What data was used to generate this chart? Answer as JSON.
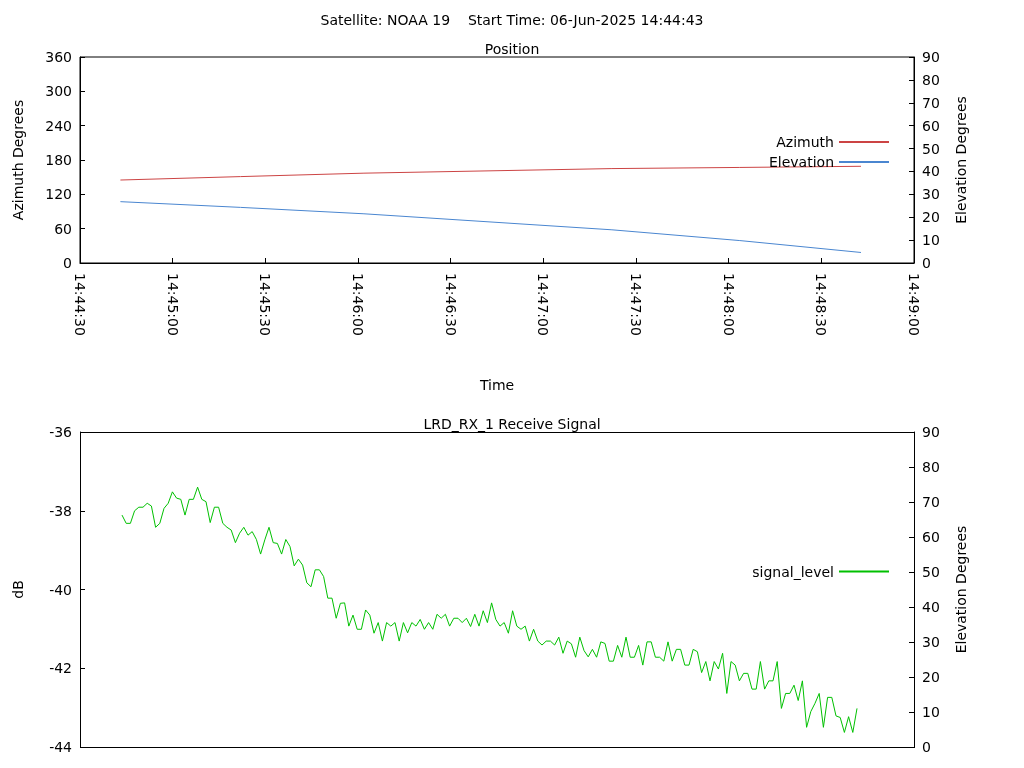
{
  "chart_data": [
    {
      "type": "line",
      "title": "Satellite: NOAA 19    Start Time: 06-Jun-2025 14:44:43",
      "subtitle": "Position",
      "xlabel": "Time",
      "ylabel": "Azimuth Degrees",
      "y2label": "Elevation Degrees",
      "xlim": [
        14.741667,
        14.816667
      ],
      "xticks": [
        {
          "value": 14.741667,
          "label": "14:44:30"
        },
        {
          "value": 14.75,
          "label": "14:45:00"
        },
        {
          "value": 14.758333,
          "label": "14:45:30"
        },
        {
          "value": 14.766667,
          "label": "14:46:00"
        },
        {
          "value": 14.775,
          "label": "14:46:30"
        },
        {
          "value": 14.783333,
          "label": "14:47:00"
        },
        {
          "value": 14.791667,
          "label": "14:47:30"
        },
        {
          "value": 14.8,
          "label": "14:48:00"
        },
        {
          "value": 14.808333,
          "label": "14:48:30"
        },
        {
          "value": 14.816667,
          "label": "14:49:00"
        }
      ],
      "ylim": [
        0,
        360
      ],
      "yticks": [
        0,
        60,
        120,
        180,
        240,
        300,
        360
      ],
      "y2lim": [
        0,
        90
      ],
      "y2ticks": [
        0,
        10,
        20,
        30,
        40,
        50,
        60,
        70,
        80,
        90
      ],
      "legend": "right",
      "series": [
        {
          "name": "Azimuth",
          "color": "#cc4444",
          "x": [
            14.7453,
            14.7561,
            14.7672,
            14.7895,
            14.801,
            14.8119
          ],
          "values": [
            145,
            151,
            157,
            165,
            167,
            169
          ]
        },
        {
          "name": "Elevation",
          "color": "#4a86d0",
          "axis": "y2",
          "x": [
            14.7453,
            14.7561,
            14.7672,
            14.7895,
            14.801,
            14.8119
          ],
          "values": [
            26.8,
            24.3,
            21.5,
            14.5,
            9.8,
            4.6
          ]
        }
      ]
    },
    {
      "type": "line",
      "title": "LRD_RX_1 Receive Signal",
      "ylabel": "dB",
      "y2label": "Elevation Degrees",
      "categories": [
        null,
        null,
        null,
        null,
        null,
        null,
        null,
        null,
        null,
        null,
        null,
        null,
        null,
        null,
        null,
        null,
        null,
        null,
        null,
        null,
        null,
        null,
        null,
        null,
        null,
        null,
        null,
        null,
        null,
        null,
        null,
        null,
        null,
        null,
        null,
        null,
        null,
        null,
        null,
        null,
        null,
        null,
        null,
        null,
        null,
        null,
        null,
        null,
        null,
        null,
        null,
        null,
        null,
        null,
        null,
        null,
        null,
        null,
        null,
        null,
        null,
        null,
        null,
        null,
        null,
        null,
        null,
        null,
        null,
        null,
        null,
        null,
        null,
        null,
        null,
        null,
        null,
        null,
        null,
        null,
        null,
        null,
        null,
        null,
        null,
        null,
        null,
        null,
        null,
        null,
        null,
        null,
        null,
        null,
        null,
        null,
        null,
        null,
        null,
        null,
        null,
        null,
        null,
        null,
        null,
        null,
        null,
        null,
        null,
        null,
        null,
        null,
        null,
        null,
        null,
        null,
        null,
        null,
        null,
        null,
        null,
        null,
        null,
        null,
        null,
        null,
        null,
        null,
        null,
        null,
        null,
        null,
        null,
        null,
        null,
        null,
        null,
        null,
        null,
        null,
        null,
        null,
        null,
        null,
        null,
        null,
        null,
        null,
        null,
        null,
        null,
        null,
        null,
        null,
        null,
        null,
        null,
        null,
        null,
        null,
        null,
        null,
        null,
        null,
        null,
        null,
        null,
        null,
        null,
        null,
        null,
        null,
        null,
        null,
        null,
        null
      ],
      "ylim": [
        -44,
        -36
      ],
      "yticks": [
        -44,
        -42,
        -40,
        -38,
        -36
      ],
      "y2lim": [
        0,
        90
      ],
      "y2ticks": [
        0,
        10,
        20,
        30,
        40,
        50,
        60,
        70,
        80,
        90
      ],
      "legend": "right",
      "series": [
        {
          "name": "signal_level",
          "color": "#00c000",
          "values": [
            -38.11,
            -38.32,
            -38.32,
            -38.0,
            -37.91,
            -37.91,
            -37.81,
            -37.88,
            -38.42,
            -38.32,
            -37.94,
            -37.81,
            -37.52,
            -37.68,
            -37.71,
            -38.11,
            -37.71,
            -37.71,
            -37.4,
            -37.71,
            -37.77,
            -38.3,
            -37.91,
            -37.91,
            -38.32,
            -38.42,
            -38.49,
            -38.81,
            -38.57,
            -38.42,
            -38.62,
            -38.53,
            -38.73,
            -39.1,
            -38.74,
            -38.42,
            -38.81,
            -38.83,
            -39.1,
            -38.73,
            -38.91,
            -39.4,
            -39.23,
            -39.38,
            -39.83,
            -39.93,
            -39.5,
            -39.5,
            -39.67,
            -40.22,
            -40.22,
            -40.73,
            -40.35,
            -40.34,
            -40.93,
            -40.65,
            -41.01,
            -41.01,
            -40.52,
            -40.65,
            -41.11,
            -40.84,
            -41.31,
            -40.84,
            -40.93,
            -40.84,
            -41.31,
            -40.84,
            -41.1,
            -40.84,
            -40.93,
            -40.76,
            -41.01,
            -40.84,
            -41.01,
            -40.63,
            -40.73,
            -40.63,
            -40.93,
            -40.73,
            -40.73,
            -40.84,
            -40.73,
            -40.94,
            -40.63,
            -40.93,
            -40.54,
            -40.84,
            -40.34,
            -40.76,
            -40.93,
            -40.84,
            -41.11,
            -40.54,
            -40.93,
            -41.01,
            -40.93,
            -41.31,
            -41.01,
            -41.31,
            -41.41,
            -41.31,
            -41.31,
            -41.41,
            -41.21,
            -41.62,
            -41.31,
            -41.38,
            -41.72,
            -41.21,
            -41.55,
            -41.71,
            -41.52,
            -41.72,
            -41.33,
            -41.37,
            -41.82,
            -41.82,
            -41.42,
            -41.72,
            -41.21,
            -41.72,
            -41.72,
            -41.42,
            -41.92,
            -41.33,
            -41.33,
            -41.72,
            -41.72,
            -41.82,
            -41.33,
            -41.82,
            -41.52,
            -41.52,
            -41.92,
            -41.92,
            -41.52,
            -41.58,
            -42.11,
            -41.83,
            -42.32,
            -41.83,
            -42.02,
            -41.62,
            -42.64,
            -41.83,
            -41.92,
            -42.32,
            -42.13,
            -42.13,
            -42.53,
            -42.53,
            -41.83,
            -42.53,
            -42.32,
            -42.32,
            -41.83,
            -43.02,
            -42.64,
            -42.64,
            -42.43,
            -42.82,
            -42.32,
            -43.5,
            -43.1,
            -42.89,
            -42.64,
            -43.5,
            -42.74,
            -42.74,
            -43.21,
            -43.25,
            -43.63,
            -43.23,
            -43.63,
            -43.02
          ]
        }
      ]
    }
  ]
}
